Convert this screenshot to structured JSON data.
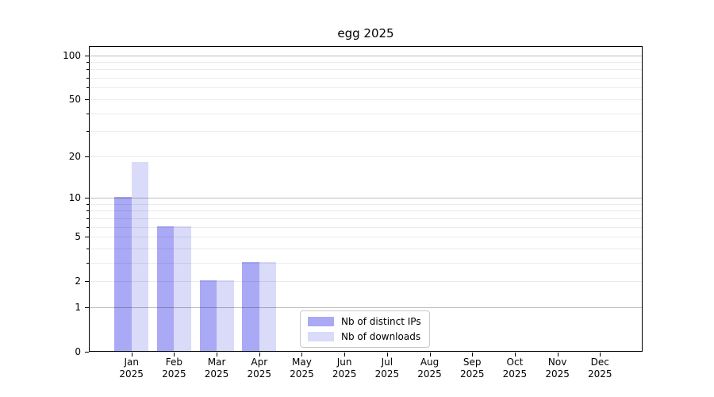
{
  "title": "egg 2025",
  "chart_data": {
    "type": "bar",
    "title": "egg 2025",
    "categories": [
      "Jan",
      "Feb",
      "Mar",
      "Apr",
      "May",
      "Jun",
      "Jul",
      "Aug",
      "Sep",
      "Oct",
      "Nov",
      "Dec"
    ],
    "x_tick_year": "2025",
    "series": [
      {
        "name": "Nb of distinct IPs",
        "color": "#a9a9f6",
        "values": [
          10,
          6,
          2,
          3,
          0,
          0,
          0,
          0,
          0,
          0,
          0,
          0
        ]
      },
      {
        "name": "Nb of downloads",
        "color": "#dadaf9",
        "values": [
          18,
          6,
          2,
          3,
          0,
          0,
          0,
          0,
          0,
          0,
          0,
          0
        ]
      }
    ],
    "y_scale": "log1p",
    "y_tick_values": [
      0,
      1,
      2,
      5,
      10,
      20,
      50,
      100
    ],
    "y_grid_major": [
      1,
      10,
      100
    ],
    "y_grid_minor": [
      2,
      3,
      4,
      5,
      6,
      7,
      8,
      9,
      20,
      30,
      40,
      50,
      60,
      70,
      80,
      90
    ],
    "ylim": [
      0,
      115
    ],
    "grid": true,
    "legend_position": "inside-bottom-center",
    "colors": {
      "axis": "#000000",
      "grid_major": "#bbbbbb",
      "grid_minor": "#e8e8e8",
      "background": "#ffffff",
      "text": "#000000"
    }
  }
}
